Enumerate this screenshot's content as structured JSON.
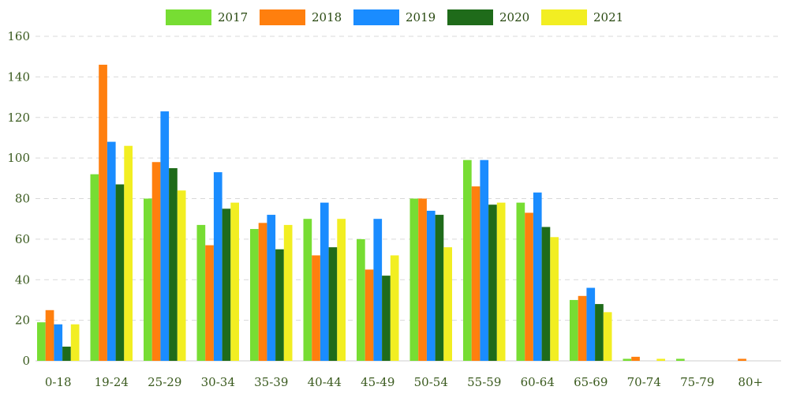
{
  "chart_data": {
    "type": "bar",
    "categories": [
      "0-18",
      "19-24",
      "25-29",
      "30-34",
      "35-39",
      "40-44",
      "45-49",
      "50-54",
      "55-59",
      "60-64",
      "65-69",
      "70-74",
      "75-79",
      "80+"
    ],
    "series": [
      {
        "name": "2017",
        "color": "#77dd33",
        "values": [
          19,
          92,
          80,
          67,
          65,
          70,
          60,
          80,
          99,
          78,
          30,
          1,
          1,
          0
        ]
      },
      {
        "name": "2018",
        "color": "#ff7f0e",
        "values": [
          25,
          146,
          98,
          57,
          68,
          52,
          45,
          80,
          86,
          73,
          32,
          2,
          0,
          1
        ]
      },
      {
        "name": "2019",
        "color": "#1a8cff",
        "values": [
          18,
          108,
          123,
          93,
          72,
          78,
          70,
          74,
          99,
          83,
          36,
          0,
          0,
          0
        ]
      },
      {
        "name": "2020",
        "color": "#1f6b1a",
        "values": [
          7,
          87,
          95,
          75,
          55,
          56,
          42,
          72,
          77,
          66,
          28,
          0,
          0,
          0
        ]
      },
      {
        "name": "2021",
        "color": "#f2ee22",
        "values": [
          18,
          106,
          84,
          78,
          67,
          70,
          52,
          56,
          78,
          61,
          24,
          1,
          0,
          0
        ]
      }
    ],
    "ylim": [
      0,
      160
    ],
    "yticks": [
      0,
      20,
      40,
      60,
      80,
      100,
      120,
      140,
      160
    ],
    "grid": true,
    "legend_position": "top-center"
  }
}
